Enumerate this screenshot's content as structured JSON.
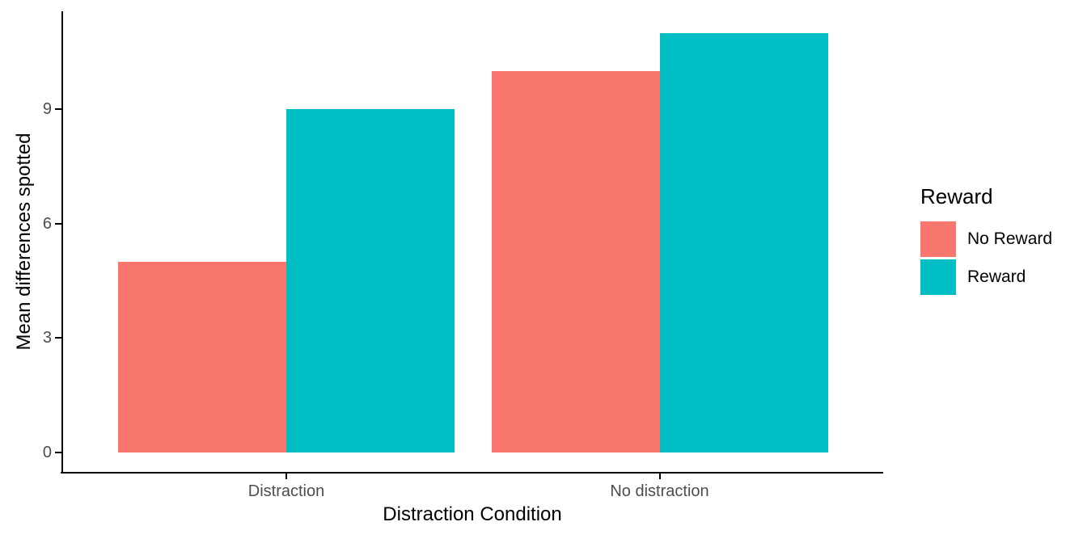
{
  "figure": {
    "background": "#FFFFFF"
  },
  "chart_data": {
    "type": "bar",
    "bar_mode": "grouped",
    "categories": [
      "Distraction",
      "No distraction"
    ],
    "series": [
      {
        "name": "No Reward",
        "color": "#F8766D",
        "values": [
          5,
          10
        ]
      },
      {
        "name": "Reward",
        "color": "#00BFC4",
        "values": [
          9,
          11
        ]
      }
    ],
    "title": "",
    "xlabel": "Distraction Condition",
    "ylabel": "Mean differences spotted",
    "yticks": [
      0,
      3,
      6,
      9
    ],
    "ylim": [
      -0.55,
      11.55
    ],
    "grid": false,
    "theme": "classic",
    "legend_title": "Reward",
    "legend_position": "right"
  },
  "colors": {
    "axis_line": "#000000",
    "tick_label": "#4D4D4D",
    "axis_title": "#000000",
    "legend_text": "#000000"
  }
}
